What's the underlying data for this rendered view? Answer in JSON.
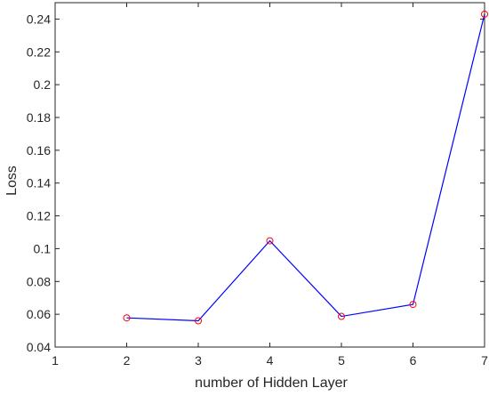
{
  "chart_data": {
    "type": "line",
    "xlabel": "number of Hidden Layer",
    "ylabel": "Loss",
    "xlim": [
      1,
      7
    ],
    "ylim": [
      0.04,
      0.25
    ],
    "xticks": [
      1,
      2,
      3,
      4,
      5,
      6,
      7
    ],
    "xtick_labels": [
      "1",
      "2",
      "3",
      "4",
      "5",
      "6",
      "7"
    ],
    "yticks": [
      0.04,
      0.06,
      0.08,
      0.1,
      0.12,
      0.14,
      0.16,
      0.18,
      0.2,
      0.22,
      0.24
    ],
    "ytick_labels": [
      "0.04",
      "0.06",
      "0.08",
      "0.1",
      "0.12",
      "0.14",
      "0.16",
      "0.18",
      "0.2",
      "0.22",
      "0.24"
    ],
    "grid": false,
    "box": true,
    "series": [
      {
        "x": [
          2,
          3,
          4,
          5,
          6,
          7
        ],
        "y": [
          0.0578,
          0.056,
          0.1048,
          0.0587,
          0.066,
          0.243
        ],
        "line_color": "#0000ff",
        "marker": "circle",
        "marker_color": "#ff0000"
      }
    ]
  }
}
